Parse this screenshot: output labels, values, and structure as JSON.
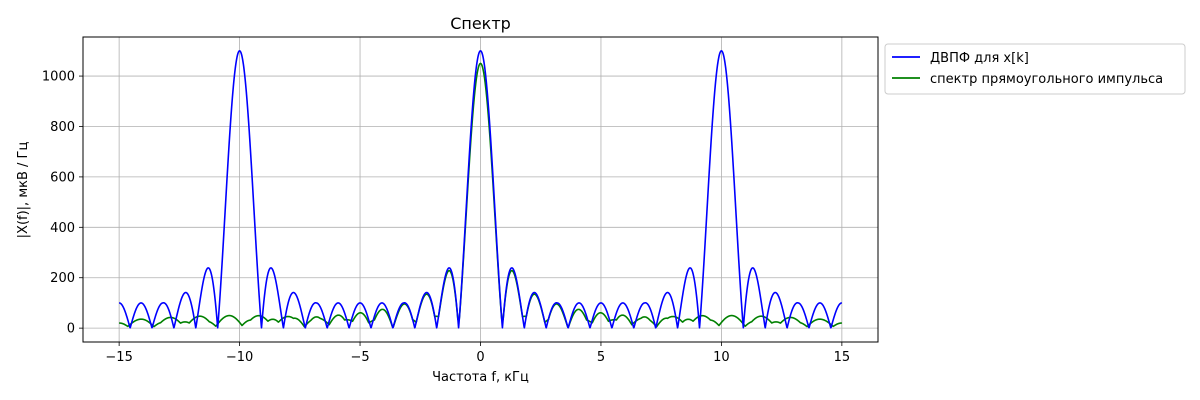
{
  "chart_data": {
    "type": "line",
    "title": "Спектр",
    "xlabel": "Частота f, кГц",
    "ylabel": "|X(f)|,  мкВ / Гц",
    "xlim": [
      -16.5,
      16.5
    ],
    "ylim": [
      -55,
      1155
    ],
    "xticks": [
      -15,
      -10,
      -5,
      0,
      5,
      10,
      15
    ],
    "xtick_labels": [
      "−15",
      "−10",
      "−5",
      "0",
      "5",
      "10",
      "15"
    ],
    "yticks": [
      0,
      200,
      400,
      600,
      800,
      1000
    ],
    "ytick_labels": [
      "0",
      "200",
      "400",
      "600",
      "800",
      "1000"
    ],
    "grid": true,
    "legend_position": "outside-right-top",
    "series": [
      {
        "name": "ДВПФ для x[k]",
        "color": "#0000ff",
        "peak": 1100,
        "lobe_width": 0.909,
        "peak_centers": [
          -10,
          0,
          10
        ],
        "x_range": [
          -15,
          15
        ],
        "points": [
          [
            -15,
            100
          ],
          [
            -14.6,
            0
          ],
          [
            -14.2,
            105
          ],
          [
            -13.7,
            0
          ],
          [
            -13.3,
            120
          ],
          [
            -12.8,
            0
          ],
          [
            -12.3,
            155
          ],
          [
            -11.8,
            0
          ],
          [
            -11.35,
            245
          ],
          [
            -10.9,
            0
          ],
          [
            -10,
            1100
          ],
          [
            -9.1,
            0
          ],
          [
            -8.65,
            245
          ],
          [
            -8.2,
            0
          ],
          [
            -7.7,
            155
          ],
          [
            -7.3,
            0
          ],
          [
            -6.8,
            120
          ],
          [
            -6.4,
            0
          ],
          [
            -5.9,
            105
          ],
          [
            -5.5,
            0
          ],
          [
            -5,
            100
          ],
          [
            -4.5,
            0
          ],
          [
            -4.1,
            105
          ],
          [
            -3.6,
            0
          ],
          [
            -3.2,
            120
          ],
          [
            -2.7,
            0
          ],
          [
            -2.3,
            155
          ],
          [
            -1.8,
            0
          ],
          [
            -1.35,
            245
          ],
          [
            -0.9,
            0
          ],
          [
            0,
            1100
          ],
          [
            0.9,
            0
          ],
          [
            1.35,
            245
          ],
          [
            1.8,
            0
          ],
          [
            2.3,
            155
          ],
          [
            2.7,
            0
          ],
          [
            3.2,
            120
          ],
          [
            3.6,
            0
          ],
          [
            4.1,
            105
          ],
          [
            4.5,
            0
          ],
          [
            5,
            100
          ],
          [
            5.5,
            0
          ],
          [
            5.9,
            105
          ],
          [
            6.4,
            0
          ],
          [
            6.8,
            120
          ],
          [
            7.3,
            0
          ],
          [
            7.7,
            155
          ],
          [
            8.2,
            0
          ],
          [
            8.65,
            245
          ],
          [
            9.1,
            0
          ],
          [
            10,
            1100
          ],
          [
            10.9,
            0
          ],
          [
            11.35,
            245
          ],
          [
            11.8,
            0
          ],
          [
            12.3,
            155
          ],
          [
            12.8,
            0
          ],
          [
            13.3,
            120
          ],
          [
            13.7,
            0
          ],
          [
            14.2,
            105
          ],
          [
            14.6,
            0
          ],
          [
            15,
            100
          ]
        ]
      },
      {
        "name": "спектр прямоугольного импульса",
        "color": "#008000",
        "peak": 1050,
        "lobe_width": 0.909,
        "peak_centers": [
          0
        ],
        "x_range": [
          -15,
          15
        ],
        "points": [
          [
            -15,
            20
          ],
          [
            -10,
            30
          ],
          [
            -5,
            60
          ],
          [
            -4.1,
            80
          ],
          [
            -3.2,
            95
          ],
          [
            -2.3,
            135
          ],
          [
            -1.35,
            230
          ],
          [
            -0.9,
            0
          ],
          [
            0,
            1050
          ],
          [
            0.9,
            0
          ],
          [
            1.35,
            230
          ],
          [
            2.3,
            135
          ],
          [
            3.2,
            95
          ],
          [
            4.1,
            80
          ],
          [
            5,
            60
          ],
          [
            10,
            30
          ],
          [
            15,
            20
          ]
        ]
      }
    ]
  }
}
